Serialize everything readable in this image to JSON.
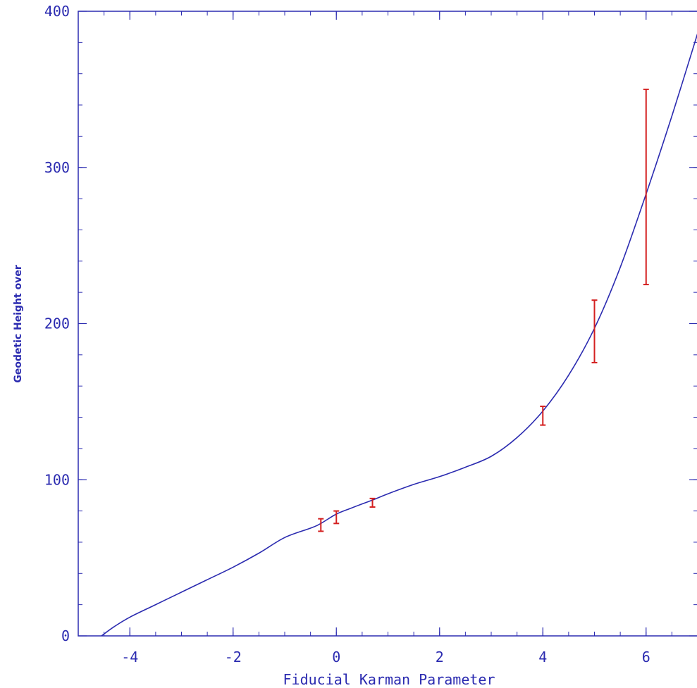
{
  "chart_data": {
    "type": "line",
    "title": "",
    "xlabel": "Fiducial Karman Parameter",
    "ylabel": "Geodetic Height  over",
    "xlim": [
      -5,
      7
    ],
    "ylim": [
      0,
      400
    ],
    "grid": false,
    "x_ticks": [
      -4,
      -2,
      0,
      2,
      4,
      6
    ],
    "y_ticks": [
      0,
      100,
      200,
      300,
      400
    ],
    "colors": {
      "axis": "#2b2bb0",
      "curve": "#2b2bb0",
      "errorbars": "#d42020"
    },
    "series": [
      {
        "kind": "curve",
        "x": [
          -4.55,
          -4.3,
          -4.0,
          -3.5,
          -3.0,
          -2.5,
          -2.0,
          -1.5,
          -1.0,
          -0.5,
          -0.3,
          0.0,
          0.3,
          0.7,
          1.0,
          1.5,
          2.0,
          2.5,
          3.0,
          3.5,
          4.0,
          4.5,
          5.0,
          5.5,
          6.0,
          6.5,
          7.0
        ],
        "y": [
          0,
          6,
          12,
          20,
          28,
          36,
          44,
          53,
          63,
          69,
          72,
          78,
          82,
          87,
          91,
          97,
          102,
          108,
          115,
          127,
          144,
          167,
          197,
          236,
          283,
          333,
          386
        ]
      },
      {
        "kind": "errorbars",
        "points": [
          {
            "x": -0.3,
            "y": 71,
            "low": 67,
            "high": 75
          },
          {
            "x": 0.0,
            "y": 76,
            "low": 72,
            "high": 80
          },
          {
            "x": 0.7,
            "y": 85,
            "low": 82.5,
            "high": 88
          },
          {
            "x": 4.0,
            "y": 141,
            "low": 135,
            "high": 147
          },
          {
            "x": 5.0,
            "y": 195,
            "low": 175,
            "high": 215
          },
          {
            "x": 6.0,
            "y": 288,
            "low": 225,
            "high": 350
          }
        ]
      }
    ]
  }
}
